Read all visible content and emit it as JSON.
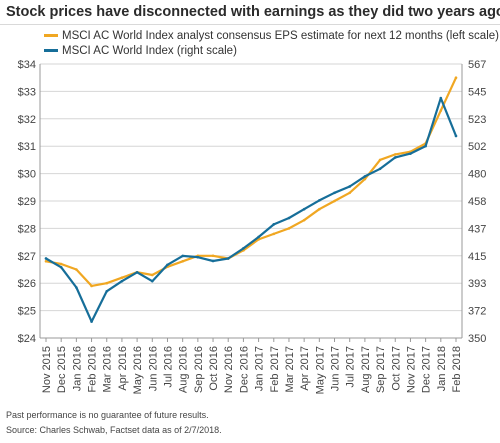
{
  "title": "Stock prices have disconnected with earnings as they did two years ago",
  "footnotes": {
    "disclaimer": "Past performance is no guarantee of future results.",
    "source": "Source: Charles Schwab, Factset data as of 2/7/2018."
  },
  "colors": {
    "eps": "#f0a722",
    "index": "#166e99",
    "grid": "#d6d6d6",
    "axis": "#999999"
  },
  "chart_data": {
    "type": "line",
    "legend_placement": "top-left",
    "grid": true,
    "x_ticks": [
      "Nov 2015",
      "Dec 2015",
      "Jan 2016",
      "Feb 2016",
      "Mar 2016",
      "Apr 2016",
      "May 2016",
      "Jun 2016",
      "Jul 2016",
      "Aug 2016",
      "Sep 2016",
      "Oct 2016",
      "Nov 2016",
      "Dec 2016",
      "Jan 2017",
      "Feb 2017",
      "Mar 2017",
      "Apr 2017",
      "May 2017",
      "Jun 2017",
      "Jul 2017",
      "Aug 2017",
      "Sep 2017",
      "Oct 2017",
      "Nov 2017",
      "Dec 2017",
      "Jan 2018",
      "Feb 2018"
    ],
    "y_left": {
      "ticks": [
        "$24",
        "$25",
        "$26",
        "$27",
        "$28",
        "$29",
        "$30",
        "$31",
        "$32",
        "$33",
        "$34"
      ],
      "range": [
        24,
        34
      ]
    },
    "y_right": {
      "ticks": [
        "350",
        "372",
        "393",
        "415",
        "437",
        "458",
        "480",
        "502",
        "523",
        "545",
        "567"
      ],
      "range": [
        350,
        567
      ]
    },
    "series": [
      {
        "name": "MSCI AC World Index analyst consensus EPS estimate for next 12 months (left scale)",
        "axis": "left",
        "x": [
          "Nov 2015",
          "Dec 2015",
          "Jan 2016",
          "Feb 2016",
          "Mar 2016",
          "Apr 2016",
          "May 2016",
          "Jun 2016",
          "Jul 2016",
          "Aug 2016",
          "Sep 2016",
          "Oct 2016",
          "Nov 2016",
          "Dec 2016",
          "Jan 2017",
          "Feb 2017",
          "Mar 2017",
          "Apr 2017",
          "May 2017",
          "Jun 2017",
          "Jul 2017",
          "Aug 2017",
          "Sep 2017",
          "Oct 2017",
          "Nov 2017",
          "Dec 2017",
          "Jan 2018",
          "Feb 2018"
        ],
        "values": [
          26.8,
          26.7,
          26.5,
          25.9,
          26.0,
          26.2,
          26.4,
          26.3,
          26.6,
          26.8,
          27.0,
          27.0,
          26.9,
          27.2,
          27.6,
          27.8,
          28.0,
          28.3,
          28.7,
          29.0,
          29.3,
          29.8,
          30.5,
          30.7,
          30.8,
          31.1,
          32.3,
          33.5
        ]
      },
      {
        "name": "MSCI AC World Index (right scale)",
        "axis": "right",
        "x": [
          "Nov 2015",
          "Dec 2015",
          "Jan 2016",
          "Feb 2016",
          "Mar 2016",
          "Apr 2016",
          "May 2016",
          "Jun 2016",
          "Jul 2016",
          "Aug 2016",
          "Sep 2016",
          "Oct 2016",
          "Nov 2016",
          "Dec 2016",
          "Jan 2017",
          "Feb 2017",
          "Mar 2017",
          "Apr 2017",
          "May 2017",
          "Jun 2017",
          "Jul 2017",
          "Aug 2017",
          "Sep 2017",
          "Oct 2017",
          "Nov 2017",
          "Dec 2017",
          "Jan 2018",
          "Feb 2018"
        ],
        "values": [
          413,
          406,
          390,
          363,
          387,
          395,
          402,
          395,
          408,
          415,
          414,
          411,
          413,
          421,
          430,
          440,
          445,
          452,
          459,
          465,
          470,
          478,
          484,
          493,
          496,
          502,
          540,
          510
        ]
      }
    ]
  }
}
